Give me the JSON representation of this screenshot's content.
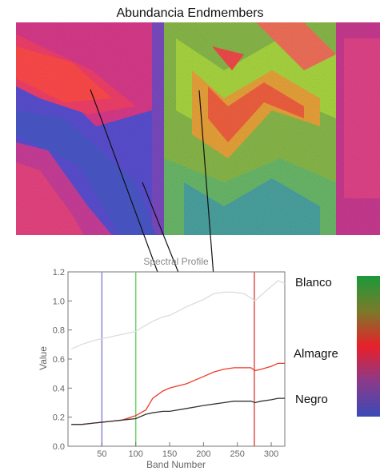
{
  "title": "Abundancia Endmembers",
  "labels": {
    "blanco": "Blanco",
    "almagre": "Almagre",
    "negro": "Negro"
  },
  "colors": {
    "blanco_curve": "#dcdcdc",
    "almagre_curve": "#ee3a2a",
    "negro_curve": "#333333",
    "band_blue": "#8a8ad8",
    "band_green": "#6ccf6c",
    "band_red": "#e05050"
  },
  "chart_data": {
    "type": "line",
    "title": "Spectral Profile",
    "xlabel": "Band Number",
    "ylabel": "Value",
    "xlim": [
      0,
      320
    ],
    "ylim": [
      0.0,
      1.2
    ],
    "x_ticks": [
      50,
      100,
      150,
      200,
      250,
      300
    ],
    "y_ticks": [
      "0.0",
      "0.2",
      "0.4",
      "0.6",
      "0.8",
      "1.0",
      "1.2"
    ],
    "vertical_bands": [
      50,
      100,
      275
    ],
    "series": [
      {
        "name": "Blanco",
        "x": [
          5,
          20,
          40,
          60,
          80,
          100,
          110,
          125,
          140,
          150,
          175,
          200,
          215,
          230,
          245,
          260,
          270,
          276,
          285,
          300,
          310,
          320
        ],
        "y": [
          0.67,
          0.7,
          0.73,
          0.75,
          0.77,
          0.79,
          0.82,
          0.86,
          0.89,
          0.9,
          0.96,
          1.01,
          1.05,
          1.06,
          1.06,
          1.05,
          1.02,
          1.0,
          1.04,
          1.1,
          1.14,
          1.12
        ]
      },
      {
        "name": "Almagre",
        "x": [
          5,
          20,
          40,
          60,
          80,
          100,
          115,
          125,
          140,
          150,
          175,
          200,
          215,
          230,
          245,
          260,
          270,
          276,
          285,
          300,
          310,
          320
        ],
        "y": [
          0.15,
          0.15,
          0.16,
          0.17,
          0.18,
          0.21,
          0.25,
          0.33,
          0.38,
          0.4,
          0.43,
          0.48,
          0.51,
          0.53,
          0.54,
          0.54,
          0.54,
          0.52,
          0.53,
          0.55,
          0.57,
          0.57
        ]
      },
      {
        "name": "Negro",
        "x": [
          5,
          20,
          40,
          60,
          80,
          100,
          115,
          125,
          140,
          150,
          175,
          200,
          215,
          230,
          245,
          260,
          270,
          276,
          285,
          300,
          310,
          320
        ],
        "y": [
          0.15,
          0.15,
          0.16,
          0.17,
          0.18,
          0.19,
          0.22,
          0.23,
          0.24,
          0.24,
          0.26,
          0.28,
          0.29,
          0.3,
          0.31,
          0.31,
          0.31,
          0.3,
          0.31,
          0.32,
          0.33,
          0.33
        ]
      }
    ]
  }
}
